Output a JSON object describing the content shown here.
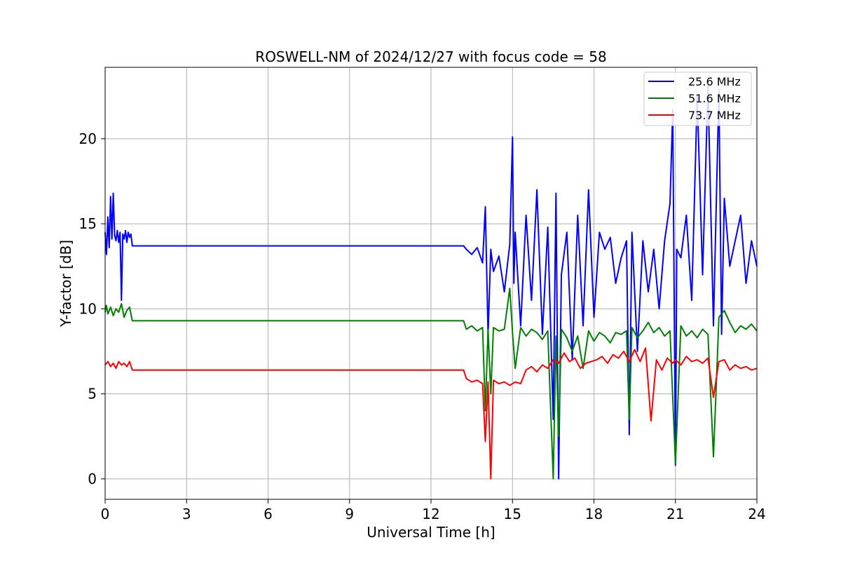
{
  "chart_data": {
    "type": "line",
    "title": "ROSWELL-NM of 2024/12/27 with focus code = 58",
    "xlabel": "Universal Time [h]",
    "ylabel": "Y-factor [dB]",
    "xlim": [
      0,
      24
    ],
    "ylim": [
      -1.2,
      24.2
    ],
    "xticks": [
      0,
      3,
      6,
      9,
      12,
      15,
      18,
      21,
      24
    ],
    "yticks": [
      0,
      5,
      10,
      15,
      20
    ],
    "grid": true,
    "legend_position": "top-right",
    "series": [
      {
        "name": "25.6 MHz",
        "color": "#0000ff",
        "x": [
          0,
          0.05,
          0.1,
          0.15,
          0.2,
          0.25,
          0.3,
          0.35,
          0.4,
          0.45,
          0.5,
          0.55,
          0.6,
          0.65,
          0.7,
          0.75,
          0.8,
          0.85,
          0.9,
          0.95,
          1.0,
          13.2,
          13.3,
          13.5,
          13.7,
          13.9,
          14.0,
          14.1,
          14.2,
          14.3,
          14.5,
          14.7,
          14.9,
          15.0,
          15.05,
          15.1,
          15.3,
          15.5,
          15.7,
          15.9,
          16.1,
          16.3,
          16.5,
          16.6,
          16.7,
          16.8,
          17.0,
          17.2,
          17.4,
          17.6,
          17.8,
          18.0,
          18.2,
          18.4,
          18.6,
          18.8,
          19.0,
          19.2,
          19.3,
          19.4,
          19.6,
          19.8,
          20.0,
          20.2,
          20.4,
          20.6,
          20.8,
          20.9,
          21.0,
          21.05,
          21.2,
          21.4,
          21.6,
          21.8,
          22.0,
          22.2,
          22.4,
          22.6,
          22.7,
          22.8,
          23.0,
          23.2,
          23.4,
          23.6,
          23.8,
          24.0
        ],
        "y": [
          14.5,
          13.2,
          15.4,
          13.6,
          16.6,
          14.1,
          16.8,
          14.3,
          14.0,
          14.6,
          13.9,
          14.5,
          10.5,
          14.4,
          14.1,
          14.6,
          13.9,
          14.5,
          14.2,
          14.4,
          13.7,
          13.7,
          13.5,
          13.2,
          13.6,
          12.7,
          16.0,
          8.5,
          13.5,
          12.2,
          13.1,
          11.0,
          13.8,
          20.1,
          11.5,
          14.5,
          9.0,
          15.5,
          10.5,
          17.0,
          8.5,
          14.8,
          3.5,
          16.8,
          0.0,
          12.0,
          14.5,
          7.0,
          15.5,
          9.0,
          17.0,
          9.5,
          14.5,
          13.5,
          14.2,
          11.5,
          13.0,
          14.0,
          2.6,
          14.5,
          7.5,
          14.0,
          11.0,
          13.5,
          10.0,
          14.0,
          16.2,
          21.7,
          0.8,
          13.5,
          13.0,
          15.5,
          10.5,
          22.5,
          12.0,
          23.1,
          9.0,
          22.9,
          8.5,
          16.5,
          12.5,
          14.0,
          15.5,
          11.5,
          14.0,
          12.5
        ]
      },
      {
        "name": "51.6 MHz",
        "color": "#008000",
        "x": [
          0,
          0.05,
          0.1,
          0.2,
          0.3,
          0.4,
          0.5,
          0.6,
          0.7,
          0.8,
          0.9,
          1.0,
          13.2,
          13.3,
          13.5,
          13.7,
          13.9,
          14.0,
          14.1,
          14.2,
          14.3,
          14.5,
          14.7,
          14.9,
          15.0,
          15.1,
          15.3,
          15.5,
          15.7,
          15.9,
          16.1,
          16.3,
          16.5,
          16.6,
          16.7,
          16.8,
          17.0,
          17.2,
          17.4,
          17.6,
          17.8,
          18.0,
          18.2,
          18.4,
          18.6,
          18.8,
          19.0,
          19.2,
          19.3,
          19.4,
          19.6,
          19.8,
          20.0,
          20.2,
          20.4,
          20.6,
          20.8,
          21.0,
          21.2,
          21.4,
          21.6,
          21.8,
          22.0,
          22.2,
          22.4,
          22.6,
          22.8,
          23.0,
          23.2,
          23.4,
          23.6,
          23.8,
          24.0
        ],
        "y": [
          9.8,
          10.2,
          9.7,
          10.1,
          9.6,
          10.0,
          9.8,
          10.3,
          9.5,
          9.9,
          10.1,
          9.3,
          9.3,
          8.8,
          9.0,
          8.7,
          8.9,
          4.0,
          8.8,
          5.0,
          8.9,
          8.7,
          8.8,
          11.2,
          8.6,
          6.5,
          8.9,
          8.4,
          8.8,
          8.6,
          8.2,
          8.7,
          0.0,
          8.4,
          2.5,
          8.8,
          8.3,
          7.5,
          8.4,
          6.5,
          8.7,
          8.1,
          8.6,
          8.4,
          8.0,
          8.6,
          8.5,
          8.7,
          3.5,
          8.9,
          8.3,
          8.7,
          9.2,
          8.6,
          8.9,
          8.4,
          8.7,
          0.9,
          9.0,
          8.4,
          8.7,
          8.3,
          8.8,
          8.5,
          1.3,
          9.5,
          9.9,
          9.2,
          8.6,
          9.0,
          8.8,
          9.1,
          8.7
        ]
      },
      {
        "name": "73.7 MHz",
        "color": "#ff0000",
        "x": [
          0,
          0.1,
          0.2,
          0.3,
          0.4,
          0.5,
          0.6,
          0.7,
          0.8,
          0.9,
          1.0,
          13.2,
          13.3,
          13.5,
          13.7,
          13.9,
          14.0,
          14.1,
          14.2,
          14.3,
          14.5,
          14.7,
          14.9,
          15.1,
          15.3,
          15.5,
          15.7,
          15.9,
          16.1,
          16.3,
          16.5,
          16.7,
          16.9,
          17.1,
          17.3,
          17.5,
          17.7,
          17.9,
          18.1,
          18.3,
          18.5,
          18.7,
          18.9,
          19.1,
          19.3,
          19.5,
          19.7,
          19.9,
          20.1,
          20.3,
          20.5,
          20.7,
          20.9,
          21.0,
          21.2,
          21.4,
          21.6,
          21.8,
          22.0,
          22.2,
          22.4,
          22.6,
          22.8,
          23.0,
          23.2,
          23.4,
          23.6,
          23.8,
          24.0
        ],
        "y": [
          6.7,
          6.9,
          6.6,
          6.8,
          6.5,
          6.9,
          6.7,
          6.8,
          6.6,
          6.9,
          6.4,
          6.4,
          5.9,
          5.7,
          5.8,
          5.6,
          2.2,
          5.7,
          0.0,
          5.8,
          5.6,
          5.7,
          5.5,
          5.7,
          5.6,
          6.4,
          6.6,
          6.3,
          6.7,
          6.5,
          7.0,
          6.8,
          7.4,
          6.9,
          7.1,
          6.5,
          6.8,
          6.9,
          7.0,
          7.2,
          6.8,
          7.3,
          7.1,
          7.5,
          6.9,
          7.6,
          6.9,
          7.7,
          3.4,
          7.0,
          6.4,
          7.1,
          6.8,
          7.0,
          6.7,
          7.2,
          6.9,
          7.0,
          6.8,
          7.1,
          4.8,
          6.9,
          7.0,
          6.4,
          6.7,
          6.5,
          6.6,
          6.4,
          6.5
        ]
      }
    ]
  }
}
